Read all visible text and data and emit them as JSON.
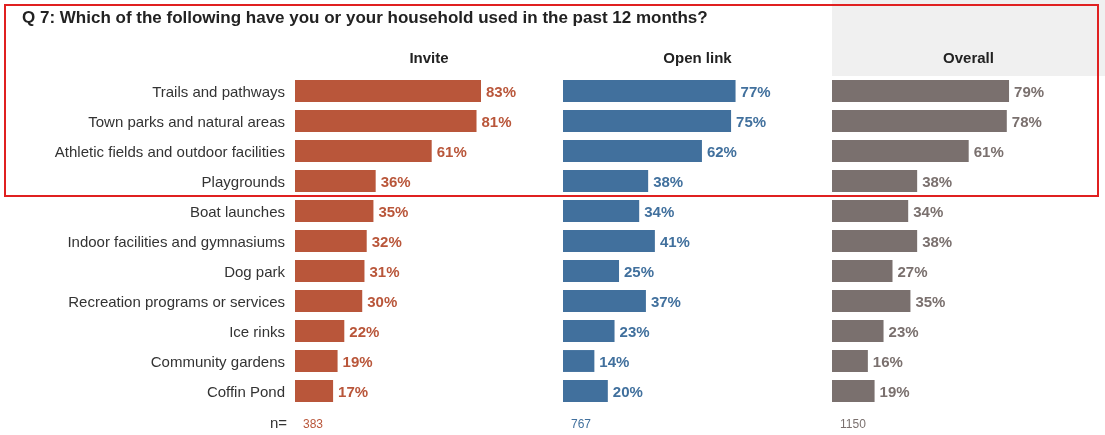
{
  "chart_data": [
    {
      "type": "bar",
      "orientation": "horizontal",
      "title": "Q 7: Which of the following have you or your household used in the past 12 months?",
      "subtitle": "Invite",
      "tick_labels": "y",
      "categories": [
        "Trails and pathways",
        "Town parks and natural areas",
        "Athletic fields and outdoor facilities",
        "Playgrounds",
        "Boat launches",
        "Indoor facilities and gymnasiums",
        "Dog park",
        "Recreation programs or services",
        "Ice rinks",
        "Community gardens",
        "Coffin Pond"
      ],
      "series": [
        {
          "color": "#b9563a",
          "values": [
            83,
            81,
            61,
            36,
            35,
            32,
            31,
            30,
            22,
            19,
            17
          ],
          "value_labels": [
            "83%",
            "81%",
            "61%",
            "36%",
            "35%",
            "32%",
            "31%",
            "30%",
            "22%",
            "19%",
            "17%"
          ]
        }
      ],
      "annotations": [
        "n=",
        "383"
      ]
    },
    {
      "type": "bar",
      "orientation": "horizontal",
      "subtitle": "Open link",
      "tick_labels": false,
      "categories": [
        null,
        null,
        null,
        null,
        null,
        null,
        null,
        null,
        null,
        null,
        null
      ],
      "series": [
        {
          "color": "#41709d",
          "values": [
            77,
            75,
            62,
            38,
            34,
            41,
            25,
            37,
            23,
            14,
            20
          ],
          "value_labels": [
            "77%",
            "75%",
            "62%",
            "38%",
            "34%",
            "41%",
            "25%",
            "37%",
            "23%",
            "14%",
            "20%"
          ]
        }
      ],
      "annotations": [
        "767"
      ]
    },
    {
      "type": "bar",
      "orientation": "horizontal",
      "subtitle": "Overall",
      "tick_labels": false,
      "categories": [
        null,
        null,
        null,
        null,
        null,
        null,
        null,
        null,
        null,
        null,
        null
      ],
      "series": [
        {
          "color": "#7a706e",
          "values": [
            79,
            78,
            61,
            38,
            34,
            38,
            27,
            35,
            23,
            16,
            19
          ],
          "value_labels": [
            "79%",
            "78%",
            "61%",
            "38%",
            "34%",
            "38%",
            "27%",
            "35%",
            "23%",
            "16%",
            "19%"
          ]
        }
      ],
      "annotations": [
        "1150"
      ]
    }
  ]
}
